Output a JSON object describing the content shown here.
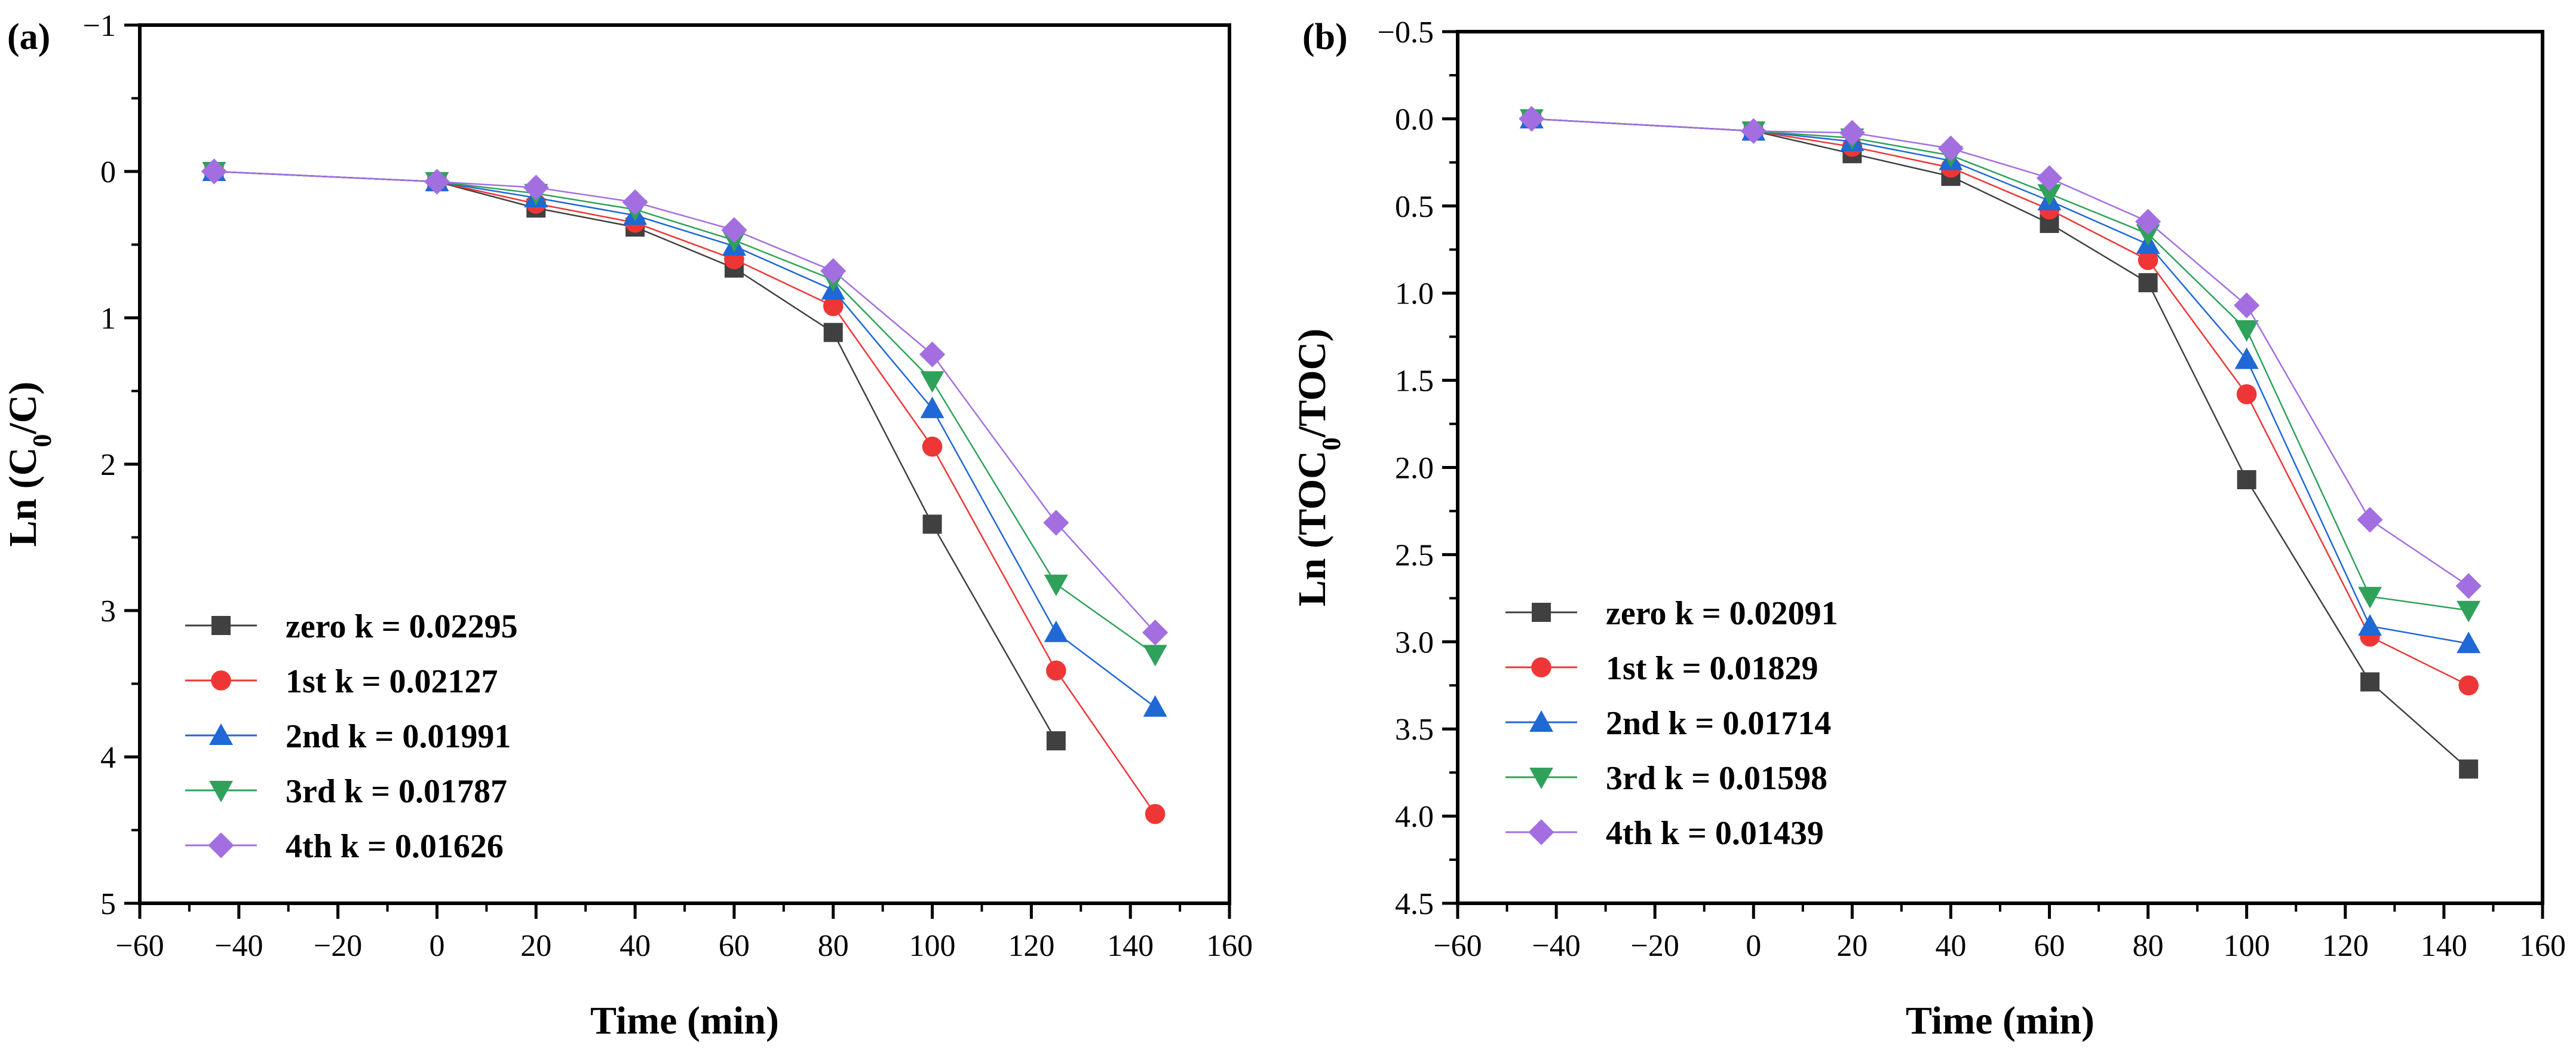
{
  "chart_data": [
    {
      "type": "line",
      "panel_label": "(a)",
      "xlabel": "Time (min)",
      "ylabel": "Ln (C₀/C)",
      "ylabel_parts": {
        "prefix": "Ln (C",
        "sub": "0",
        "suffix": "/C)"
      },
      "xlim": [
        -60,
        160
      ],
      "ylim": [
        -1,
        5
      ],
      "y_inverted": true,
      "x_ticks": [
        -60,
        -40,
        -20,
        0,
        20,
        40,
        60,
        80,
        100,
        120,
        140,
        160
      ],
      "x_tick_labels": [
        "−60",
        "−40",
        "−20",
        "0",
        "20",
        "40",
        "60",
        "80",
        "100",
        "120",
        "140",
        "160"
      ],
      "y_ticks": [
        -1,
        0,
        1,
        2,
        3,
        4,
        5
      ],
      "y_tick_labels": [
        "−1",
        "0",
        "1",
        "2",
        "3",
        "4",
        "5"
      ],
      "legend_position": "bottom-left",
      "x": [
        -45,
        0,
        20,
        40,
        60,
        80,
        100,
        125,
        145
      ],
      "series": [
        {
          "name": "zero k = 0.02295",
          "marker": "square",
          "color": "#404040",
          "values": [
            0,
            0.07,
            0.25,
            0.38,
            0.66,
            1.1,
            2.41,
            3.89,
            null
          ]
        },
        {
          "name": "1st k = 0.02127",
          "marker": "circle",
          "color": "#ee3636",
          "values": [
            0,
            0.07,
            0.22,
            0.35,
            0.6,
            0.92,
            1.88,
            3.41,
            4.39
          ]
        },
        {
          "name": "2nd k = 0.01991",
          "marker": "triangle-up",
          "color": "#1f68d6",
          "values": [
            0,
            0.07,
            0.18,
            0.3,
            0.51,
            0.81,
            1.62,
            3.15,
            3.66
          ]
        },
        {
          "name": "3rd k = 0.01787",
          "marker": "triangle-down",
          "color": "#2fa15a",
          "values": [
            0,
            0.07,
            0.15,
            0.26,
            0.47,
            0.74,
            1.43,
            2.82,
            3.3
          ]
        },
        {
          "name": "4th k = 0.01626",
          "marker": "diamond",
          "color": "#a36fe0",
          "values": [
            0,
            0.07,
            0.11,
            0.21,
            0.4,
            0.68,
            1.25,
            2.4,
            3.15
          ]
        }
      ]
    },
    {
      "type": "line",
      "panel_label": "(b)",
      "xlabel": "Time (min)",
      "ylabel": "Ln (TOC₀/TOC)",
      "ylabel_parts": {
        "prefix": "Ln (TOC",
        "sub": "0",
        "suffix": "/TOC)"
      },
      "xlim": [
        -60,
        160
      ],
      "ylim": [
        -0.5,
        4.5
      ],
      "y_inverted": true,
      "x_ticks": [
        -60,
        -40,
        -20,
        0,
        20,
        40,
        60,
        80,
        100,
        120,
        140,
        160
      ],
      "x_tick_labels": [
        "−60",
        "−40",
        "−20",
        "0",
        "20",
        "40",
        "60",
        "80",
        "100",
        "120",
        "140",
        "160"
      ],
      "y_ticks": [
        -0.5,
        0,
        0.5,
        1,
        1.5,
        2,
        2.5,
        3,
        3.5,
        4,
        4.5
      ],
      "y_tick_labels": [
        "−0.5",
        "0.0",
        "0.5",
        "1.0",
        "1.5",
        "2.0",
        "2.5",
        "3.0",
        "3.5",
        "4.0",
        "4.5"
      ],
      "legend_position": "bottom-left",
      "x": [
        -45,
        0,
        20,
        40,
        60,
        80,
        100,
        125,
        145
      ],
      "series": [
        {
          "name": "zero k = 0.02091",
          "marker": "square",
          "color": "#404040",
          "values": [
            0,
            0.07,
            0.2,
            0.33,
            0.6,
            0.94,
            2.07,
            3.23,
            3.73
          ]
        },
        {
          "name": "1st k = 0.01829",
          "marker": "circle",
          "color": "#ee3636",
          "values": [
            0,
            0.07,
            0.16,
            0.28,
            0.52,
            0.81,
            1.58,
            2.97,
            3.25
          ]
        },
        {
          "name": "2nd k = 0.01714",
          "marker": "triangle-up",
          "color": "#1f68d6",
          "values": [
            0,
            0.07,
            0.13,
            0.24,
            0.47,
            0.72,
            1.38,
            2.91,
            3.01
          ]
        },
        {
          "name": "3rd k = 0.01598",
          "marker": "triangle-down",
          "color": "#2fa15a",
          "values": [
            0,
            0.07,
            0.11,
            0.21,
            0.43,
            0.66,
            1.21,
            2.74,
            2.82
          ]
        },
        {
          "name": "4th k = 0.01439",
          "marker": "diamond",
          "color": "#a36fe0",
          "values": [
            0,
            0.07,
            0.08,
            0.17,
            0.34,
            0.59,
            1.07,
            2.3,
            2.68
          ]
        }
      ]
    }
  ]
}
